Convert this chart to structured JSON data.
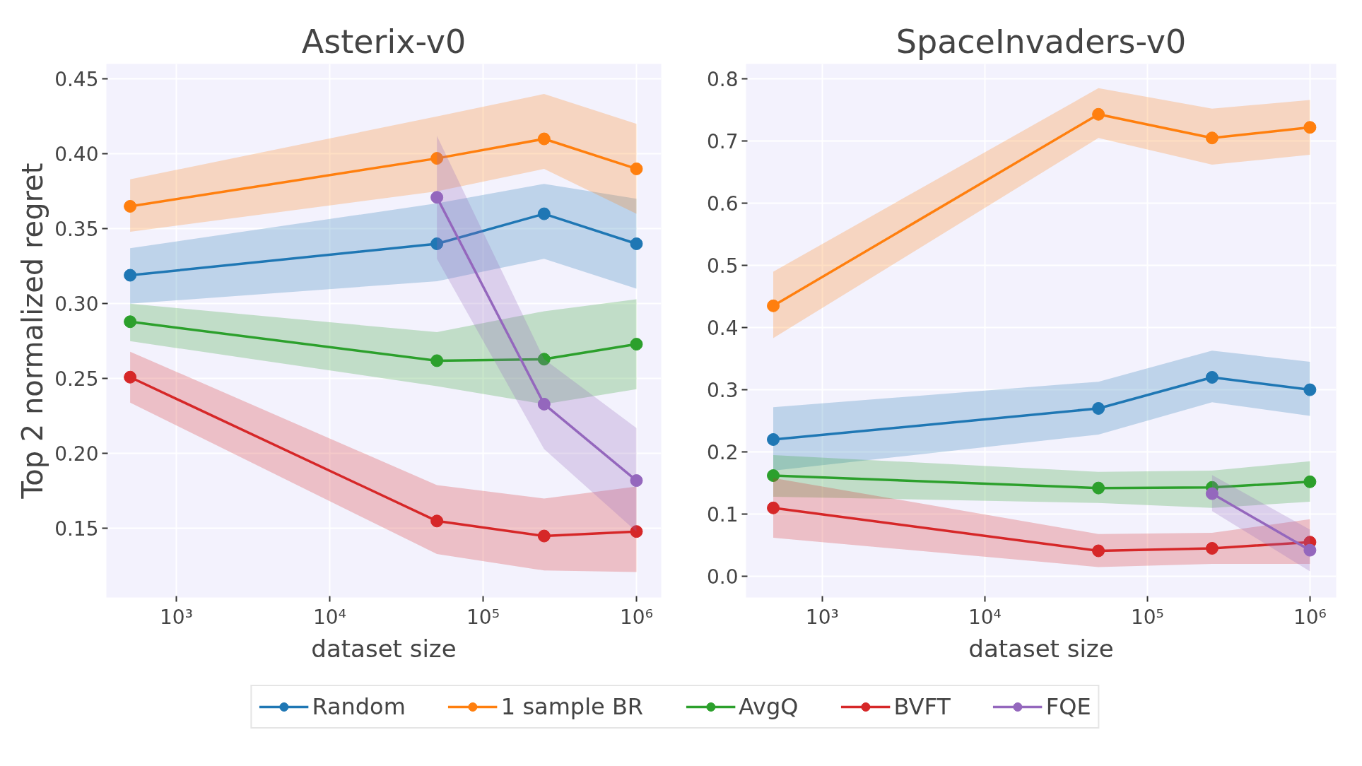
{
  "chart_data": [
    {
      "type": "line",
      "title": "Asterix-v0",
      "xlabel": "dataset size",
      "ylabel": "Top 2 normalized regret",
      "log": "x",
      "grid": true,
      "marker": "circle",
      "legend": "bottom",
      "x": [
        500,
        50000,
        250000,
        1000000
      ],
      "xlim": [
        350,
        1450000
      ],
      "xticks": [
        {
          "value": 1000,
          "label": "10³"
        },
        {
          "value": 10000,
          "label": "10⁴"
        },
        {
          "value": 100000,
          "label": "10⁵"
        },
        {
          "value": 1000000,
          "label": "10⁶"
        }
      ],
      "ylim": [
        0.104,
        0.46
      ],
      "yticks": [
        0.15,
        {
          "value": 0.2,
          "label": "0.20"
        },
        0.25,
        {
          "value": 0.3,
          "label": "0.30"
        },
        0.35,
        {
          "value": 0.4,
          "label": "0.40"
        },
        0.45
      ],
      "series": [
        {
          "name": "Random",
          "color": "#1f77b4",
          "values": [
            0.319,
            0.34,
            0.36,
            0.34
          ],
          "lower": [
            0.3,
            0.315,
            0.33,
            0.31
          ],
          "upper": [
            0.337,
            0.367,
            0.38,
            0.37
          ]
        },
        {
          "name": "1 sample BR",
          "color": "#ff7f0e",
          "values": [
            0.365,
            0.397,
            0.41,
            0.39
          ],
          "lower": [
            0.348,
            0.375,
            0.39,
            0.36
          ],
          "upper": [
            0.383,
            0.425,
            0.44,
            0.42
          ]
        },
        {
          "name": "AvgQ",
          "color": "#2ca02c",
          "values": [
            0.288,
            0.262,
            0.263,
            0.273
          ],
          "lower": [
            0.275,
            0.245,
            0.233,
            0.243
          ],
          "upper": [
            0.3,
            0.281,
            0.295,
            0.303
          ]
        },
        {
          "name": "BVFT",
          "color": "#d62728",
          "values": [
            0.251,
            0.155,
            0.145,
            0.148
          ],
          "lower": [
            0.234,
            0.133,
            0.122,
            0.121
          ],
          "upper": [
            0.268,
            0.179,
            0.17,
            0.178
          ]
        },
        {
          "name": "FQE",
          "color": "#9467bd",
          "x": [
            50000,
            250000,
            1000000
          ],
          "values": [
            0.371,
            0.233,
            0.182
          ],
          "lower": [
            0.33,
            0.203,
            0.148
          ],
          "upper": [
            0.412,
            0.263,
            0.217
          ]
        }
      ]
    },
    {
      "type": "line",
      "title": "SpaceInvaders-v0",
      "xlabel": "dataset size",
      "log": "x",
      "grid": true,
      "marker": "circle",
      "x": [
        500,
        50000,
        250000,
        1000000
      ],
      "xlim": [
        340,
        1450000
      ],
      "xticks": [
        {
          "value": 1000,
          "label": "10³"
        },
        {
          "value": 10000,
          "label": "10⁴"
        },
        {
          "value": 100000,
          "label": "10⁵"
        },
        {
          "value": 1000000,
          "label": "10⁶"
        }
      ],
      "ylim": [
        -0.034,
        0.824
      ],
      "yticks": [
        {
          "value": 0,
          "label": "0.0"
        },
        0.1,
        0.2,
        0.3,
        0.4,
        0.5,
        0.6,
        0.7,
        0.8
      ],
      "series": [
        {
          "color": "#1f77b4",
          "values": [
            0.22,
            0.27,
            0.32,
            0.3
          ],
          "lower": [
            0.17,
            0.228,
            0.28,
            0.258
          ],
          "upper": [
            0.272,
            0.313,
            0.363,
            0.345
          ]
        },
        {
          "color": "#ff7f0e",
          "values": [
            0.435,
            0.743,
            0.705,
            0.722
          ],
          "lower": [
            0.383,
            0.705,
            0.662,
            0.678
          ],
          "upper": [
            0.49,
            0.785,
            0.752,
            0.766
          ]
        },
        {
          "color": "#2ca02c",
          "values": [
            0.162,
            0.142,
            0.143,
            0.152
          ],
          "lower": [
            0.128,
            0.118,
            0.11,
            0.12
          ],
          "upper": [
            0.195,
            0.168,
            0.17,
            0.185
          ]
        },
        {
          "color": "#d62728",
          "values": [
            0.11,
            0.041,
            0.045,
            0.055
          ],
          "lower": [
            0.062,
            0.015,
            0.02,
            0.02
          ],
          "upper": [
            0.158,
            0.068,
            0.07,
            0.092
          ]
        },
        {
          "color": "#9467bd",
          "x": [
            250000,
            1000000
          ],
          "values": [
            0.133,
            0.042
          ],
          "lower": [
            0.105,
            0.008
          ],
          "upper": [
            0.163,
            0.075
          ]
        }
      ]
    }
  ]
}
